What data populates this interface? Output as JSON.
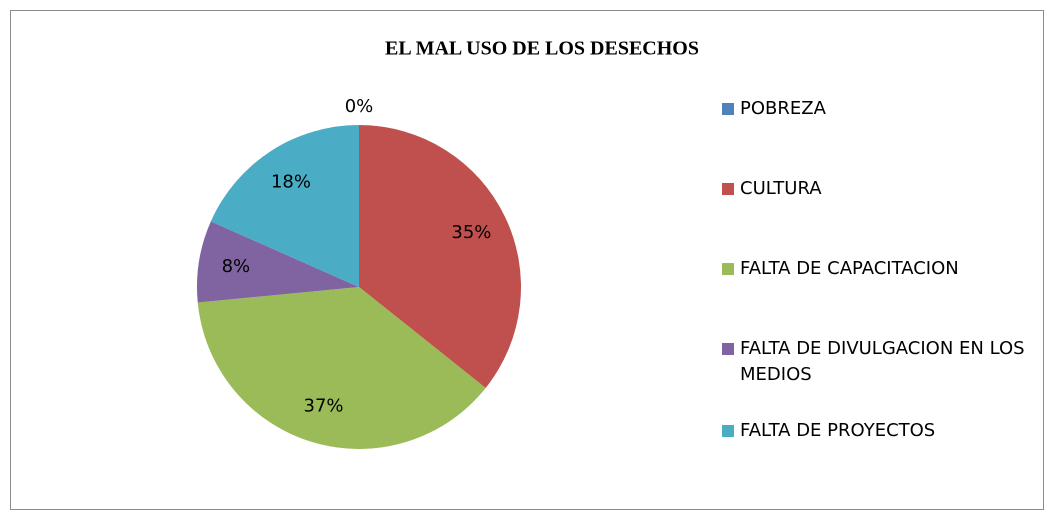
{
  "chart_data": {
    "type": "pie",
    "title": "EL MAL USO DE LOS DESECHOS",
    "categories": [
      "POBREZA",
      "CULTURA",
      "FALTA DE CAPACITACION",
      "FALTA DE DIVULGACION EN LOS MEDIOS",
      "FALTA DE PROYECTOS"
    ],
    "values": [
      0,
      35,
      37,
      8,
      18
    ],
    "value_labels": [
      "0%",
      "35%",
      "37%",
      "8%",
      "18%"
    ],
    "colors": [
      "#4f81bd",
      "#c0504d",
      "#9bbb59",
      "#8064a2",
      "#4bacc6"
    ],
    "legend": "right"
  }
}
